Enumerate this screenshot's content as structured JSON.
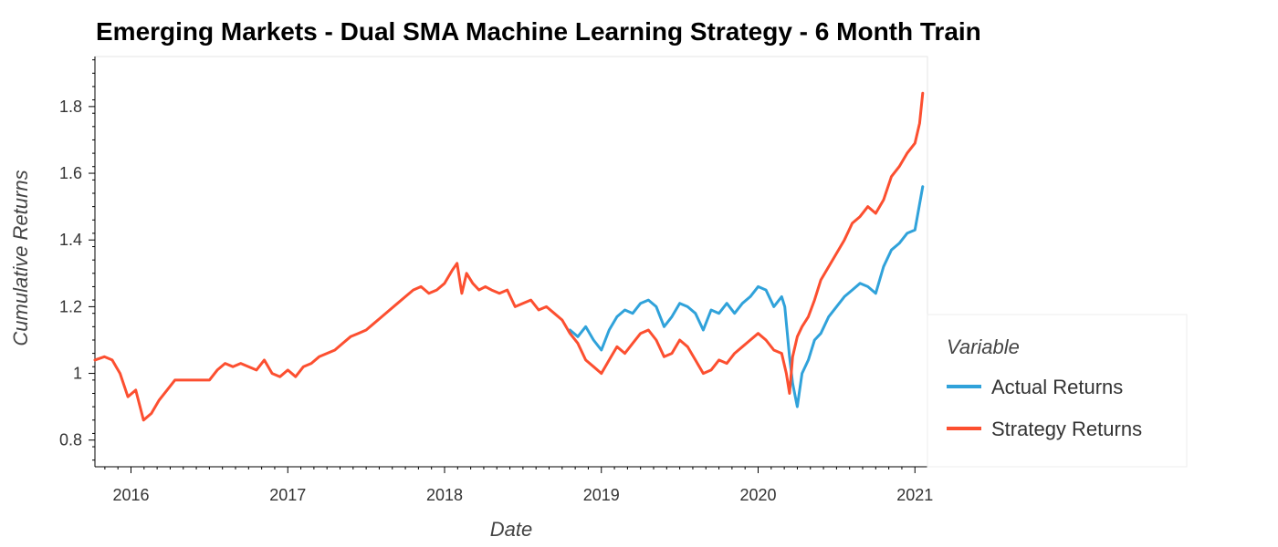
{
  "chart_data": {
    "type": "line",
    "title": "Emerging Markets - Dual SMA Machine Learning Strategy - 6 Month Train",
    "xlabel": "Date",
    "ylabel": "Cumulative Returns",
    "xlim": [
      2015.77,
      2021.08
    ],
    "ylim": [
      0.72,
      1.95
    ],
    "x_ticks": [
      2016,
      2017,
      2018,
      2019,
      2020,
      2021
    ],
    "x_tick_labels": [
      "2016",
      "2017",
      "2018",
      "2019",
      "2020",
      "2021"
    ],
    "y_ticks": [
      0.8,
      1.0,
      1.2,
      1.4,
      1.6,
      1.8
    ],
    "y_tick_labels": [
      "0.8",
      "1",
      "1.2",
      "1.4",
      "1.6",
      "1.8"
    ],
    "legend": {
      "title": "Variable",
      "placement": "right",
      "entries": [
        "Actual Returns",
        "Strategy Returns"
      ]
    },
    "series": [
      {
        "name": "Actual Returns",
        "color": "#30a2da",
        "x": [
          2018.8,
          2018.85,
          2018.9,
          2018.95,
          2019.0,
          2019.05,
          2019.1,
          2019.15,
          2019.2,
          2019.25,
          2019.3,
          2019.35,
          2019.4,
          2019.45,
          2019.5,
          2019.55,
          2019.6,
          2019.65,
          2019.7,
          2019.75,
          2019.8,
          2019.85,
          2019.9,
          2019.95,
          2020.0,
          2020.05,
          2020.1,
          2020.15,
          2020.17,
          2020.2,
          2020.22,
          2020.25,
          2020.28,
          2020.32,
          2020.36,
          2020.4,
          2020.45,
          2020.5,
          2020.55,
          2020.6,
          2020.65,
          2020.7,
          2020.75,
          2020.8,
          2020.85,
          2020.9,
          2020.95,
          2021.0,
          2021.05
        ],
        "y": [
          1.13,
          1.11,
          1.14,
          1.1,
          1.07,
          1.13,
          1.17,
          1.19,
          1.18,
          1.21,
          1.22,
          1.2,
          1.14,
          1.17,
          1.21,
          1.2,
          1.18,
          1.13,
          1.19,
          1.18,
          1.21,
          1.18,
          1.21,
          1.23,
          1.26,
          1.25,
          1.2,
          1.23,
          1.2,
          1.05,
          0.97,
          0.9,
          1.0,
          1.04,
          1.1,
          1.12,
          1.17,
          1.2,
          1.23,
          1.25,
          1.27,
          1.26,
          1.24,
          1.32,
          1.37,
          1.39,
          1.42,
          1.43,
          1.56
        ]
      },
      {
        "name": "Strategy Returns",
        "color": "#fc4f30",
        "x": [
          2015.77,
          2015.83,
          2015.88,
          2015.93,
          2015.98,
          2016.03,
          2016.08,
          2016.13,
          2016.18,
          2016.23,
          2016.28,
          2016.5,
          2016.55,
          2016.6,
          2016.65,
          2016.7,
          2016.75,
          2016.8,
          2016.85,
          2016.9,
          2016.95,
          2017.0,
          2017.05,
          2017.1,
          2017.15,
          2017.2,
          2017.25,
          2017.3,
          2017.35,
          2017.4,
          2017.45,
          2017.5,
          2017.55,
          2017.6,
          2017.65,
          2017.7,
          2017.75,
          2017.8,
          2017.85,
          2017.9,
          2017.95,
          2018.0,
          2018.05,
          2018.08,
          2018.11,
          2018.14,
          2018.18,
          2018.22,
          2018.26,
          2018.3,
          2018.35,
          2018.4,
          2018.45,
          2018.5,
          2018.55,
          2018.6,
          2018.65,
          2018.7,
          2018.75,
          2018.8,
          2018.85,
          2018.9,
          2018.95,
          2019.0,
          2019.05,
          2019.1,
          2019.15,
          2019.2,
          2019.25,
          2019.3,
          2019.35,
          2019.4,
          2019.45,
          2019.5,
          2019.55,
          2019.6,
          2019.65,
          2019.7,
          2019.75,
          2019.8,
          2019.85,
          2019.9,
          2019.95,
          2020.0,
          2020.05,
          2020.1,
          2020.15,
          2020.18,
          2020.2,
          2020.22,
          2020.25,
          2020.28,
          2020.32,
          2020.36,
          2020.4,
          2020.45,
          2020.5,
          2020.55,
          2020.6,
          2020.65,
          2020.7,
          2020.75,
          2020.8,
          2020.85,
          2020.9,
          2020.95,
          2021.0,
          2021.03,
          2021.05
        ],
        "y": [
          1.04,
          1.05,
          1.04,
          1.0,
          0.93,
          0.95,
          0.86,
          0.88,
          0.92,
          0.95,
          0.98,
          0.98,
          1.01,
          1.03,
          1.02,
          1.03,
          1.02,
          1.01,
          1.04,
          1.0,
          0.99,
          1.01,
          0.99,
          1.02,
          1.03,
          1.05,
          1.06,
          1.07,
          1.09,
          1.11,
          1.12,
          1.13,
          1.15,
          1.17,
          1.19,
          1.21,
          1.23,
          1.25,
          1.26,
          1.24,
          1.25,
          1.27,
          1.31,
          1.33,
          1.24,
          1.3,
          1.27,
          1.25,
          1.26,
          1.25,
          1.24,
          1.25,
          1.2,
          1.21,
          1.22,
          1.19,
          1.2,
          1.18,
          1.16,
          1.12,
          1.09,
          1.04,
          1.02,
          1.0,
          1.04,
          1.08,
          1.06,
          1.09,
          1.12,
          1.13,
          1.1,
          1.05,
          1.06,
          1.1,
          1.08,
          1.04,
          1.0,
          1.01,
          1.04,
          1.03,
          1.06,
          1.08,
          1.1,
          1.12,
          1.1,
          1.07,
          1.06,
          1.0,
          0.94,
          1.05,
          1.11,
          1.14,
          1.17,
          1.22,
          1.28,
          1.32,
          1.36,
          1.4,
          1.45,
          1.47,
          1.5,
          1.48,
          1.52,
          1.59,
          1.62,
          1.66,
          1.69,
          1.75,
          1.84
        ]
      }
    ]
  }
}
